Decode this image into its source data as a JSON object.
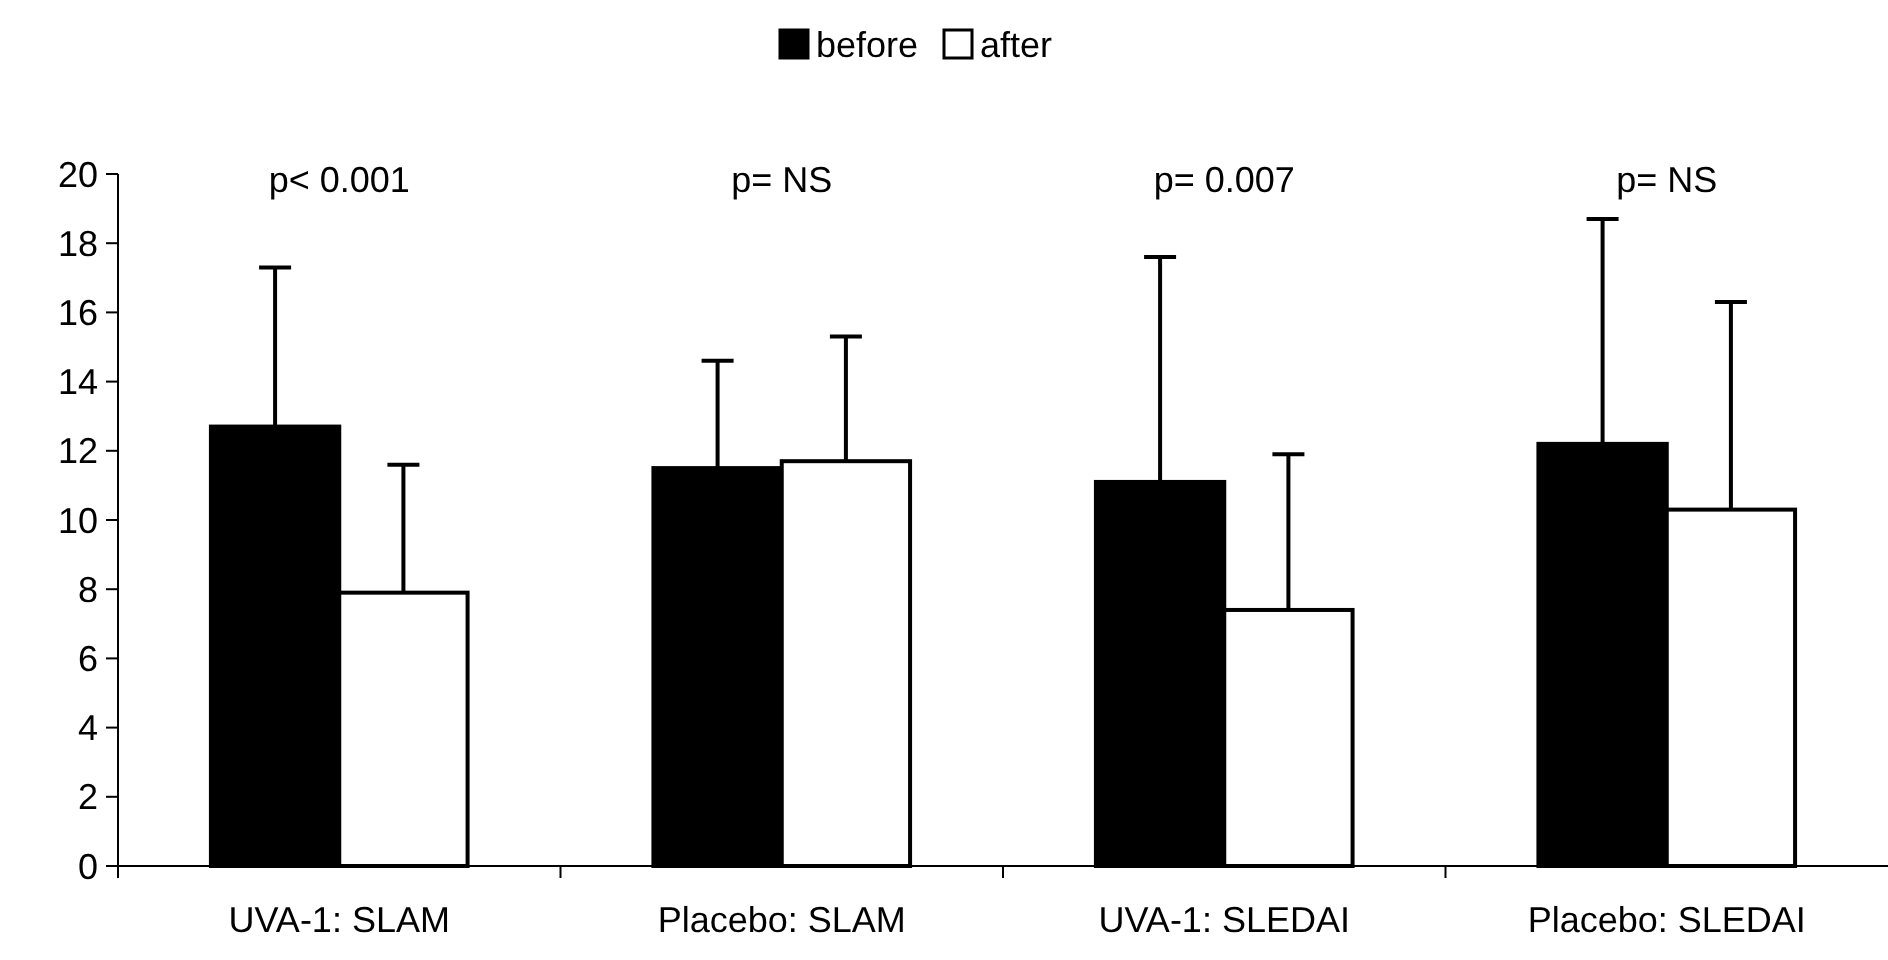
{
  "chart_data": {
    "type": "bar",
    "categories": [
      "UVA-1: SLAM",
      "Placebo: SLAM",
      "UVA-1: SLEDAI",
      "Placebo: SLEDAI"
    ],
    "series": [
      {
        "name": "before",
        "color": "#000000",
        "values": [
          12.7,
          11.5,
          11.1,
          12.2
        ],
        "errors": [
          [
            12.7,
            17.3
          ],
          [
            11.5,
            14.6
          ],
          [
            11.1,
            17.6
          ],
          [
            12.2,
            18.7
          ]
        ]
      },
      {
        "name": "after",
        "color": "#ffffff",
        "values": [
          7.9,
          11.7,
          7.4,
          10.3
        ],
        "errors": [
          [
            7.9,
            11.6
          ],
          [
            11.7,
            15.3
          ],
          [
            7.4,
            11.9
          ],
          [
            10.3,
            16.3
          ]
        ]
      }
    ],
    "ylim": [
      0,
      20
    ],
    "yticks": [
      0,
      2,
      4,
      6,
      8,
      10,
      12,
      14,
      16,
      18,
      20
    ],
    "grid": false,
    "legend": "top",
    "annotations": [
      "p< 0.001",
      "p= NS",
      "p= 0.007",
      "p= NS"
    ]
  }
}
